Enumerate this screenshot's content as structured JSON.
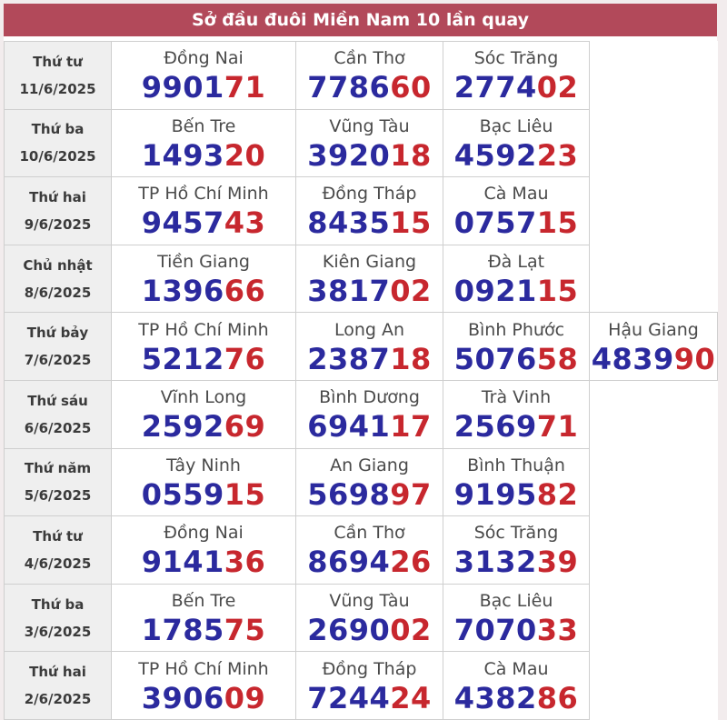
{
  "page": {
    "title": "Sở đầu đuôi Miền Nam 10 lần quay"
  },
  "colors": {
    "page_bg": "#f2eced",
    "header_bg": "#b2495a",
    "header_text": "#ffffff",
    "cell_border": "#cfcfcf",
    "day_cell_bg": "#efefef",
    "day_text": "#3b3b3b",
    "province_text": "#4a4a4a",
    "head_digits": "#2b2a9e",
    "tail_digits": "#c7272e"
  },
  "table": {
    "rows": [
      {
        "day": "Thứ tư",
        "date": "11/6/2025",
        "results": [
          {
            "province": "Đồng Nai",
            "head": "9901",
            "tail": "71"
          },
          {
            "province": "Cần Thơ",
            "head": "7786",
            "tail": "60"
          },
          {
            "province": "Sóc Trăng",
            "head": "2774",
            "tail": "02"
          }
        ]
      },
      {
        "day": "Thứ ba",
        "date": "10/6/2025",
        "results": [
          {
            "province": "Bến Tre",
            "head": "1493",
            "tail": "20"
          },
          {
            "province": "Vũng Tàu",
            "head": "3920",
            "tail": "18"
          },
          {
            "province": "Bạc Liêu",
            "head": "4592",
            "tail": "23"
          }
        ]
      },
      {
        "day": "Thứ hai",
        "date": "9/6/2025",
        "results": [
          {
            "province": "TP Hồ Chí Minh",
            "head": "9457",
            "tail": "43"
          },
          {
            "province": "Đồng Tháp",
            "head": "8435",
            "tail": "15"
          },
          {
            "province": "Cà Mau",
            "head": "0757",
            "tail": "15"
          }
        ]
      },
      {
        "day": "Chủ nhật",
        "date": "8/6/2025",
        "results": [
          {
            "province": "Tiền Giang",
            "head": "1396",
            "tail": "66"
          },
          {
            "province": "Kiên Giang",
            "head": "3817",
            "tail": "02"
          },
          {
            "province": "Đà Lạt",
            "head": "0921",
            "tail": "15"
          }
        ]
      },
      {
        "day": "Thứ bảy",
        "date": "7/6/2025",
        "results": [
          {
            "province": "TP Hồ Chí Minh",
            "head": "5212",
            "tail": "76"
          },
          {
            "province": "Long An",
            "head": "2387",
            "tail": "18"
          },
          {
            "province": "Bình Phước",
            "head": "5076",
            "tail": "58"
          },
          {
            "province": "Hậu Giang",
            "head": "4839",
            "tail": "90"
          }
        ]
      },
      {
        "day": "Thứ sáu",
        "date": "6/6/2025",
        "results": [
          {
            "province": "Vĩnh Long",
            "head": "2592",
            "tail": "69"
          },
          {
            "province": "Bình Dương",
            "head": "6941",
            "tail": "17"
          },
          {
            "province": "Trà Vinh",
            "head": "2569",
            "tail": "71"
          }
        ]
      },
      {
        "day": "Thứ năm",
        "date": "5/6/2025",
        "results": [
          {
            "province": "Tây Ninh",
            "head": "0559",
            "tail": "15"
          },
          {
            "province": "An Giang",
            "head": "5698",
            "tail": "97"
          },
          {
            "province": "Bình Thuận",
            "head": "9195",
            "tail": "82"
          }
        ]
      },
      {
        "day": "Thứ tư",
        "date": "4/6/2025",
        "results": [
          {
            "province": "Đồng Nai",
            "head": "9141",
            "tail": "36"
          },
          {
            "province": "Cần Thơ",
            "head": "8694",
            "tail": "26"
          },
          {
            "province": "Sóc Trăng",
            "head": "3132",
            "tail": "39"
          }
        ]
      },
      {
        "day": "Thứ ba",
        "date": "3/6/2025",
        "results": [
          {
            "province": "Bến Tre",
            "head": "1785",
            "tail": "75"
          },
          {
            "province": "Vũng Tàu",
            "head": "2690",
            "tail": "02"
          },
          {
            "province": "Bạc Liêu",
            "head": "7070",
            "tail": "33"
          }
        ]
      },
      {
        "day": "Thứ hai",
        "date": "2/6/2025",
        "results": [
          {
            "province": "TP Hồ Chí Minh",
            "head": "3906",
            "tail": "09"
          },
          {
            "province": "Đồng Tháp",
            "head": "7244",
            "tail": "24"
          },
          {
            "province": "Cà Mau",
            "head": "4382",
            "tail": "86"
          }
        ]
      }
    ]
  }
}
